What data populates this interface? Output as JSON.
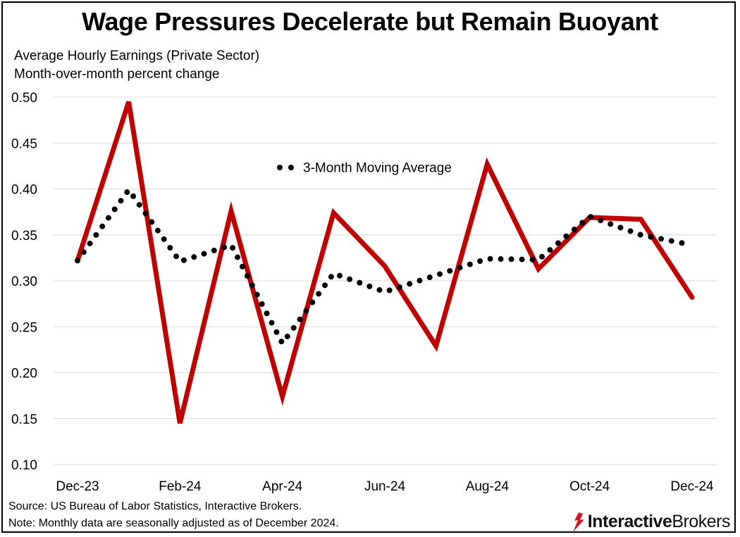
{
  "title": "Wage Pressures Decelerate but Remain Buoyant",
  "subtitle_line1": "Average Hourly Earnings (Private Sector)",
  "subtitle_line2": "Month-over-month percent change",
  "footnote_source": "Source: US Bureau of Labor Statistics, Interactive Brokers.",
  "footnote_note": "Note: Monthly data are seasonally adjusted as of December 2024.",
  "logo": {
    "bold": "Interactive",
    "regular": "Brokers",
    "icon": "interactive-brokers-logo-icon"
  },
  "colors": {
    "series": "#c00000",
    "moving_average": "#000000",
    "grid": "#d9d9d9"
  },
  "chart_data": {
    "type": "line",
    "title": "Wage Pressures Decelerate but Remain Buoyant",
    "x": [
      "Dec-23",
      "Jan-24",
      "Feb-24",
      "Mar-24",
      "Apr-24",
      "May-24",
      "Jun-24",
      "Jul-24",
      "Aug-24",
      "Sep-24",
      "Oct-24",
      "Nov-24",
      "Dec-24"
    ],
    "x_tick_labels": [
      "Dec-23",
      "Feb-24",
      "Apr-24",
      "Jun-24",
      "Aug-24",
      "Oct-24",
      "Dec-24"
    ],
    "y_tick_labels": [
      "0.50",
      "0.45",
      "0.40",
      "0.35",
      "0.30",
      "0.25",
      "0.20",
      "0.15",
      "0.10"
    ],
    "ylim": [
      0.1,
      0.5
    ],
    "grid": true,
    "legend_placement": "top-center",
    "series": [
      {
        "values": [
          0.322,
          0.495,
          0.145,
          0.376,
          0.174,
          0.374,
          0.316,
          0.229,
          0.427,
          0.313,
          0.369,
          0.367,
          0.282
        ],
        "style": "solid",
        "color": "#c00000"
      },
      {
        "name": "3-Month Moving Average",
        "values": [
          0.322,
          0.399,
          0.321,
          0.339,
          0.232,
          0.308,
          0.288,
          0.306,
          0.324,
          0.323,
          0.37,
          0.35,
          0.339
        ],
        "style": "dotted",
        "color": "#000000"
      }
    ]
  }
}
